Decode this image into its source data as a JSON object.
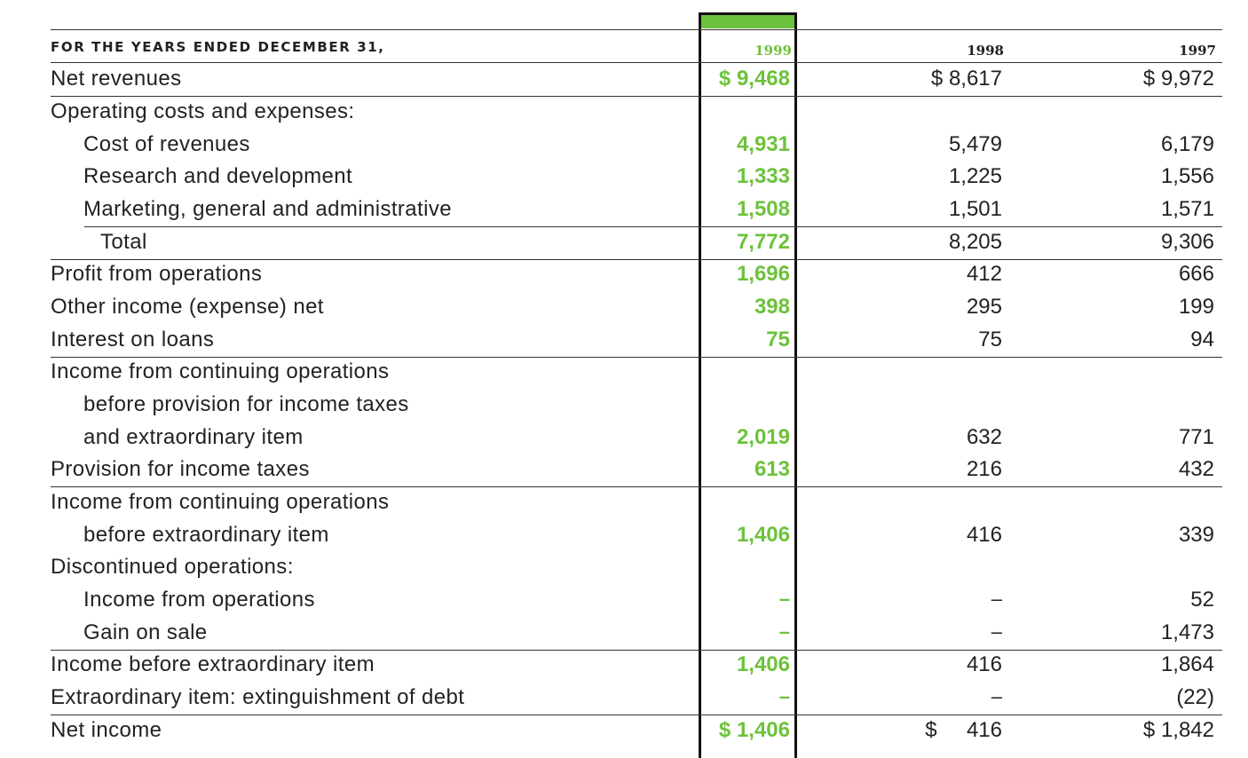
{
  "header": {
    "label": "FOR THE YEARS ENDED DECEMBER 31,",
    "years": [
      "1999",
      "1998",
      "1997"
    ]
  },
  "rows": [
    {
      "label": "Net revenues",
      "indent": 0,
      "v1999": "$ 9,468",
      "v1998": "$ 8,617",
      "v1997": "$ 9,972"
    },
    {
      "label": "Operating costs and expenses:",
      "indent": 0,
      "v1999": "",
      "v1998": "",
      "v1997": ""
    },
    {
      "label": "Cost of revenues",
      "indent": 1,
      "v1999": "4,931",
      "v1998": "5,479",
      "v1997": "6,179"
    },
    {
      "label": "Research and development",
      "indent": 1,
      "v1999": "1,333",
      "v1998": "1,225",
      "v1997": "1,556"
    },
    {
      "label": "Marketing, general and administrative",
      "indent": 1,
      "v1999": "1,508",
      "v1998": "1,501",
      "v1997": "1,571"
    },
    {
      "label": "Total",
      "indent": 2,
      "v1999": "7,772",
      "v1998": "8,205",
      "v1997": "9,306"
    },
    {
      "label": "Profit from operations",
      "indent": 0,
      "v1999": "1,696",
      "v1998": "412",
      "v1997": "666"
    },
    {
      "label": "Other income (expense) net",
      "indent": 0,
      "v1999": "398",
      "v1998": "295",
      "v1997": "199"
    },
    {
      "label": "Interest on loans",
      "indent": 0,
      "v1999": "75",
      "v1998": "75",
      "v1997": "94"
    },
    {
      "label": "Income from continuing operations",
      "indent": 0,
      "v1999": "",
      "v1998": "",
      "v1997": ""
    },
    {
      "label": "before provision for income taxes",
      "indent": 1,
      "v1999": "",
      "v1998": "",
      "v1997": ""
    },
    {
      "label": "and extraordinary item",
      "indent": 1,
      "v1999": "2,019",
      "v1998": "632",
      "v1997": "771"
    },
    {
      "label": "Provision for income taxes",
      "indent": 0,
      "v1999": "613",
      "v1998": "216",
      "v1997": "432"
    },
    {
      "label": "Income from continuing operations",
      "indent": 0,
      "v1999": "",
      "v1998": "",
      "v1997": ""
    },
    {
      "label": "before extraordinary item",
      "indent": 1,
      "v1999": "1,406",
      "v1998": "416",
      "v1997": "339"
    },
    {
      "label": "Discontinued operations:",
      "indent": 0,
      "v1999": "",
      "v1998": "",
      "v1997": ""
    },
    {
      "label": "Income from operations",
      "indent": 1,
      "v1999": "–",
      "v1998": "–",
      "v1997": "52"
    },
    {
      "label": "Gain on sale",
      "indent": 1,
      "v1999": "–",
      "v1998": "–",
      "v1997": "1,473"
    },
    {
      "label": "Income before extraordinary item",
      "indent": 0,
      "v1999": "1,406",
      "v1998": "416",
      "v1997": "1,864"
    },
    {
      "label": "Extraordinary item: extinguishment of debt",
      "indent": 0,
      "v1999": "–",
      "v1998": "–",
      "v1997": "(22)"
    },
    {
      "label": "Net income",
      "indent": 0,
      "v1999": "$ 1,406",
      "v1998": "$     416",
      "v1997": "$ 1,842"
    }
  ],
  "colors": {
    "highlight": "#6cc23a",
    "text": "#222222",
    "rule": "#333333"
  }
}
